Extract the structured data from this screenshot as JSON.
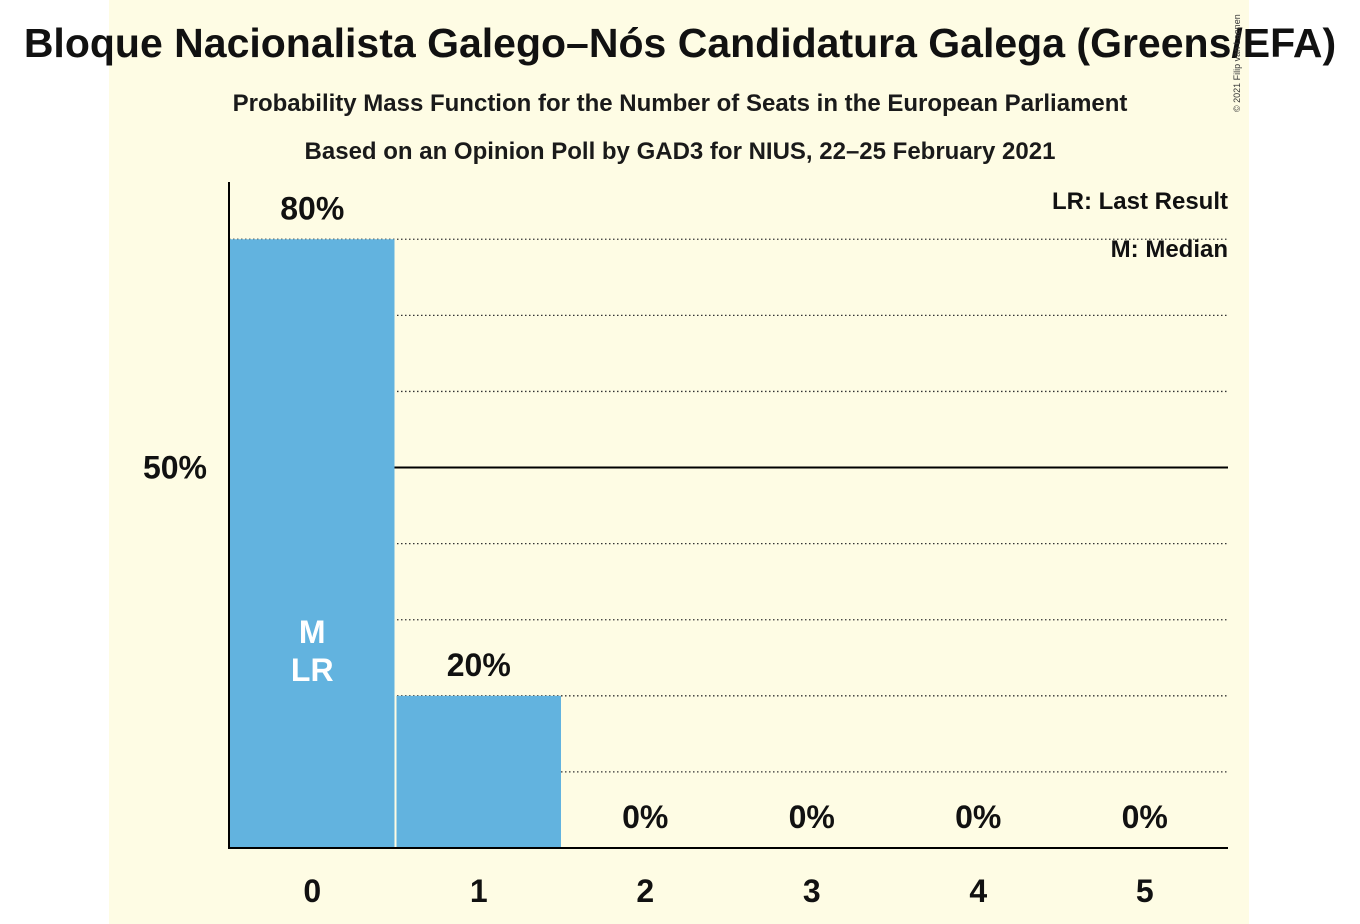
{
  "title": "Bloque Nacionalista Galego–Nós Candidatura Galega (Greens/EFA)",
  "subtitle": "Probability Mass Function for the Number of Seats in the European Parliament",
  "source": "Based on an Opinion Poll by GAD3 for NIUS, 22–25 February 2021",
  "copyright": "© 2021 Filip van Laenen",
  "legend": {
    "last_result": "LR: Last Result",
    "median": "M: Median"
  },
  "colors": {
    "bar": "#62b3df",
    "background": "#fefce4"
  },
  "chart_data": {
    "type": "bar",
    "title": "Bloque Nacionalista Galego–Nós Candidatura Galega (Greens/EFA)",
    "xlabel": "",
    "ylabel": "",
    "categories": [
      "0",
      "1",
      "2",
      "3",
      "4",
      "5"
    ],
    "values": [
      80,
      20,
      0,
      0,
      0,
      0
    ],
    "value_labels": [
      "80%",
      "20%",
      "0%",
      "0%",
      "0%",
      "0%"
    ],
    "bar_annotations": [
      "M\nLR",
      "",
      "",
      "",
      "",
      ""
    ],
    "ylim": [
      0,
      87
    ],
    "y_tick_labels": [
      {
        "value": 50,
        "label": "50%"
      }
    ],
    "grid": {
      "dotted_every": 10,
      "solid_at": 50
    },
    "legend_position": "top-right"
  }
}
